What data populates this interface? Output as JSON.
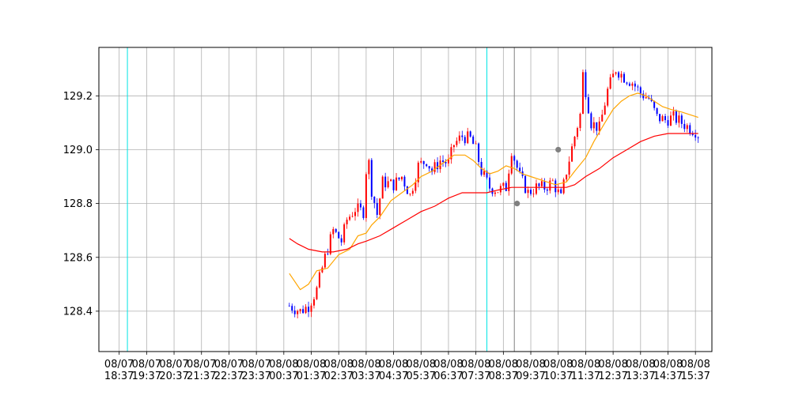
{
  "chart_data": {
    "type": "candlestick",
    "title": "",
    "xlabel": "",
    "ylabel": "",
    "ylim": [
      128.25,
      129.38
    ],
    "grid": true,
    "legend": "none",
    "x_tick_labels": [
      "08/07\n18:37",
      "08/07\n19:37",
      "08/07\n20:37",
      "08/07\n21:37",
      "08/07\n22:37",
      "08/07\n23:37",
      "08/08\n00:37",
      "08/08\n01:37",
      "08/08\n02:37",
      "08/08\n03:37",
      "08/08\n04:37",
      "08/08\n05:37",
      "08/08\n06:37",
      "08/08\n07:37",
      "08/08\n08:37",
      "08/08\n09:37",
      "08/08\n10:37",
      "08/08\n11:37",
      "08/08\n12:37",
      "08/08\n13:37",
      "08/08\n14:37",
      "08/08\n15:37"
    ],
    "y_ticks": [
      128.4,
      128.6,
      128.8,
      129.0,
      129.2
    ],
    "y_tick_labels": [
      "128.4",
      "128.6",
      "128.8",
      "129.0",
      "129.2"
    ],
    "x_hours": [
      0,
      1,
      2,
      3,
      4,
      5,
      6,
      7,
      8,
      9,
      10,
      11,
      12,
      13,
      14,
      15,
      16,
      17,
      18,
      19,
      20,
      21
    ],
    "x_domain_hours": [
      -0.74,
      21.6
    ],
    "price_series": [
      [
        6.2,
        128.42
      ],
      [
        6.6,
        128.4
      ],
      [
        6.9,
        128.42
      ],
      [
        7.2,
        128.48
      ],
      [
        7.5,
        128.6
      ],
      [
        7.8,
        128.7
      ],
      [
        8.1,
        128.66
      ],
      [
        8.3,
        128.74
      ],
      [
        8.6,
        128.78
      ],
      [
        8.9,
        128.77
      ],
      [
        9.05,
        129.0
      ],
      [
        9.2,
        128.85
      ],
      [
        9.4,
        128.76
      ],
      [
        9.6,
        128.88
      ],
      [
        10.0,
        128.87
      ],
      [
        10.3,
        128.9
      ],
      [
        10.6,
        128.83
      ],
      [
        10.9,
        128.94
      ],
      [
        11.2,
        128.96
      ],
      [
        11.4,
        128.92
      ],
      [
        11.7,
        128.96
      ],
      [
        12.0,
        128.95
      ],
      [
        12.2,
        129.02
      ],
      [
        12.5,
        129.05
      ],
      [
        12.8,
        129.04
      ],
      [
        13.0,
        129.0
      ],
      [
        13.2,
        128.92
      ],
      [
        13.5,
        128.86
      ],
      [
        13.8,
        128.85
      ],
      [
        14.1,
        128.86
      ],
      [
        14.3,
        129.0
      ],
      [
        14.6,
        128.9
      ],
      [
        14.9,
        128.84
      ],
      [
        15.2,
        128.86
      ],
      [
        15.5,
        128.86
      ],
      [
        15.8,
        128.88
      ],
      [
        16.1,
        128.82
      ],
      [
        16.3,
        128.92
      ],
      [
        16.6,
        129.05
      ],
      [
        16.8,
        129.13
      ],
      [
        16.9,
        129.28
      ],
      [
        17.2,
        129.1
      ],
      [
        17.5,
        129.08
      ],
      [
        17.8,
        129.22
      ],
      [
        18.1,
        129.3
      ],
      [
        18.4,
        129.27
      ],
      [
        18.7,
        129.25
      ],
      [
        19.0,
        129.21
      ],
      [
        19.3,
        129.19
      ],
      [
        19.6,
        129.12
      ],
      [
        19.9,
        129.11
      ],
      [
        20.2,
        129.12
      ],
      [
        20.5,
        129.1
      ],
      [
        20.8,
        129.08
      ],
      [
        21.0,
        129.07
      ],
      [
        21.15,
        129.05
      ]
    ],
    "series": [
      {
        "color": "#ffa500",
        "x": [
          6.2,
          6.6,
          6.9,
          7.2,
          7.6,
          8.0,
          8.4,
          8.7,
          9.0,
          9.2,
          9.5,
          9.9,
          10.3,
          10.7,
          11.0,
          11.4,
          11.8,
          12.2,
          12.6,
          12.9,
          13.2,
          13.5,
          13.8,
          14.1,
          14.4,
          14.7,
          15.0,
          15.3,
          15.6,
          15.9,
          16.3,
          16.6,
          17.0,
          17.3,
          17.7,
          18.0,
          18.3,
          18.6,
          18.9,
          19.2,
          19.5,
          19.8,
          20.1,
          20.5,
          20.8,
          21.1
        ],
        "y": [
          128.54,
          128.48,
          128.5,
          128.55,
          128.56,
          128.61,
          128.63,
          128.68,
          128.69,
          128.72,
          128.75,
          128.81,
          128.84,
          128.87,
          128.9,
          128.92,
          128.95,
          128.98,
          128.98,
          128.96,
          128.93,
          128.91,
          128.92,
          128.94,
          128.93,
          128.91,
          128.9,
          128.89,
          128.88,
          128.87,
          128.88,
          128.92,
          128.97,
          129.03,
          129.1,
          129.15,
          129.18,
          129.2,
          129.21,
          129.2,
          129.18,
          129.16,
          129.15,
          129.14,
          129.13,
          129.12
        ]
      },
      {
        "color": "#ff0000",
        "x": [
          6.2,
          6.5,
          6.9,
          7.4,
          7.8,
          8.3,
          8.7,
          9.0,
          9.5,
          10.0,
          10.5,
          11.0,
          11.5,
          12.0,
          12.5,
          13.0,
          13.4,
          13.8,
          14.3,
          14.7,
          15.1,
          15.5,
          15.9,
          16.3,
          16.6,
          17.0,
          17.5,
          18.0,
          18.5,
          19.0,
          19.5,
          20.0,
          20.5,
          21.1
        ],
        "y": [
          128.67,
          128.65,
          128.63,
          128.62,
          128.62,
          128.63,
          128.65,
          128.66,
          128.68,
          128.71,
          128.74,
          128.77,
          128.79,
          128.82,
          128.84,
          128.84,
          128.84,
          128.85,
          128.86,
          128.86,
          128.86,
          128.86,
          128.86,
          128.86,
          128.87,
          128.9,
          128.93,
          128.97,
          129.0,
          129.03,
          129.05,
          129.06,
          129.06,
          129.06
        ]
      }
    ],
    "markers": [
      {
        "x": 14.5,
        "y": 128.8,
        "color": "#808080"
      },
      {
        "x": 16.0,
        "y": 129.0,
        "color": "#808080"
      }
    ],
    "vertical_lines": [
      {
        "x": 0.3,
        "color": "#00e5e5"
      },
      {
        "x": 13.4,
        "color": "#00e5e5"
      },
      {
        "x": 14.4,
        "color": "#808080"
      }
    ],
    "candle_colors": {
      "up": "#ff0000",
      "down": "#0000ff"
    }
  }
}
